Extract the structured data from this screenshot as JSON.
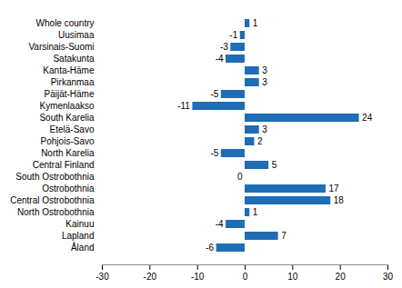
{
  "chart_data": {
    "type": "bar",
    "orientation": "horizontal",
    "categories": [
      "Whole country",
      "Uusimaa",
      "Varsinais-Suomi",
      "Satakunta",
      "Kanta-Häme",
      "Pirkanmaa",
      "Päijät-Häme",
      "Kymenlaakso",
      "South Karelia",
      "Etelä-Savo",
      "Pohjois-Savo",
      "North Karelia",
      "Central Finland",
      "South Ostrobothnia",
      "Ostrobothnia",
      "Central Ostrobothnia",
      "North Ostrobothnia",
      "Kainuu",
      "Lapland",
      "Åland"
    ],
    "values": [
      1,
      -1,
      -3,
      -4,
      3,
      3,
      -5,
      -11,
      24,
      3,
      2,
      -5,
      5,
      0,
      17,
      18,
      1,
      -4,
      7,
      -6
    ],
    "color": "#1f6db5",
    "xlim": [
      -30,
      30
    ],
    "xticks": [
      -30,
      -20,
      -10,
      0,
      10,
      20,
      30
    ],
    "grid": false,
    "data_labels": true
  }
}
